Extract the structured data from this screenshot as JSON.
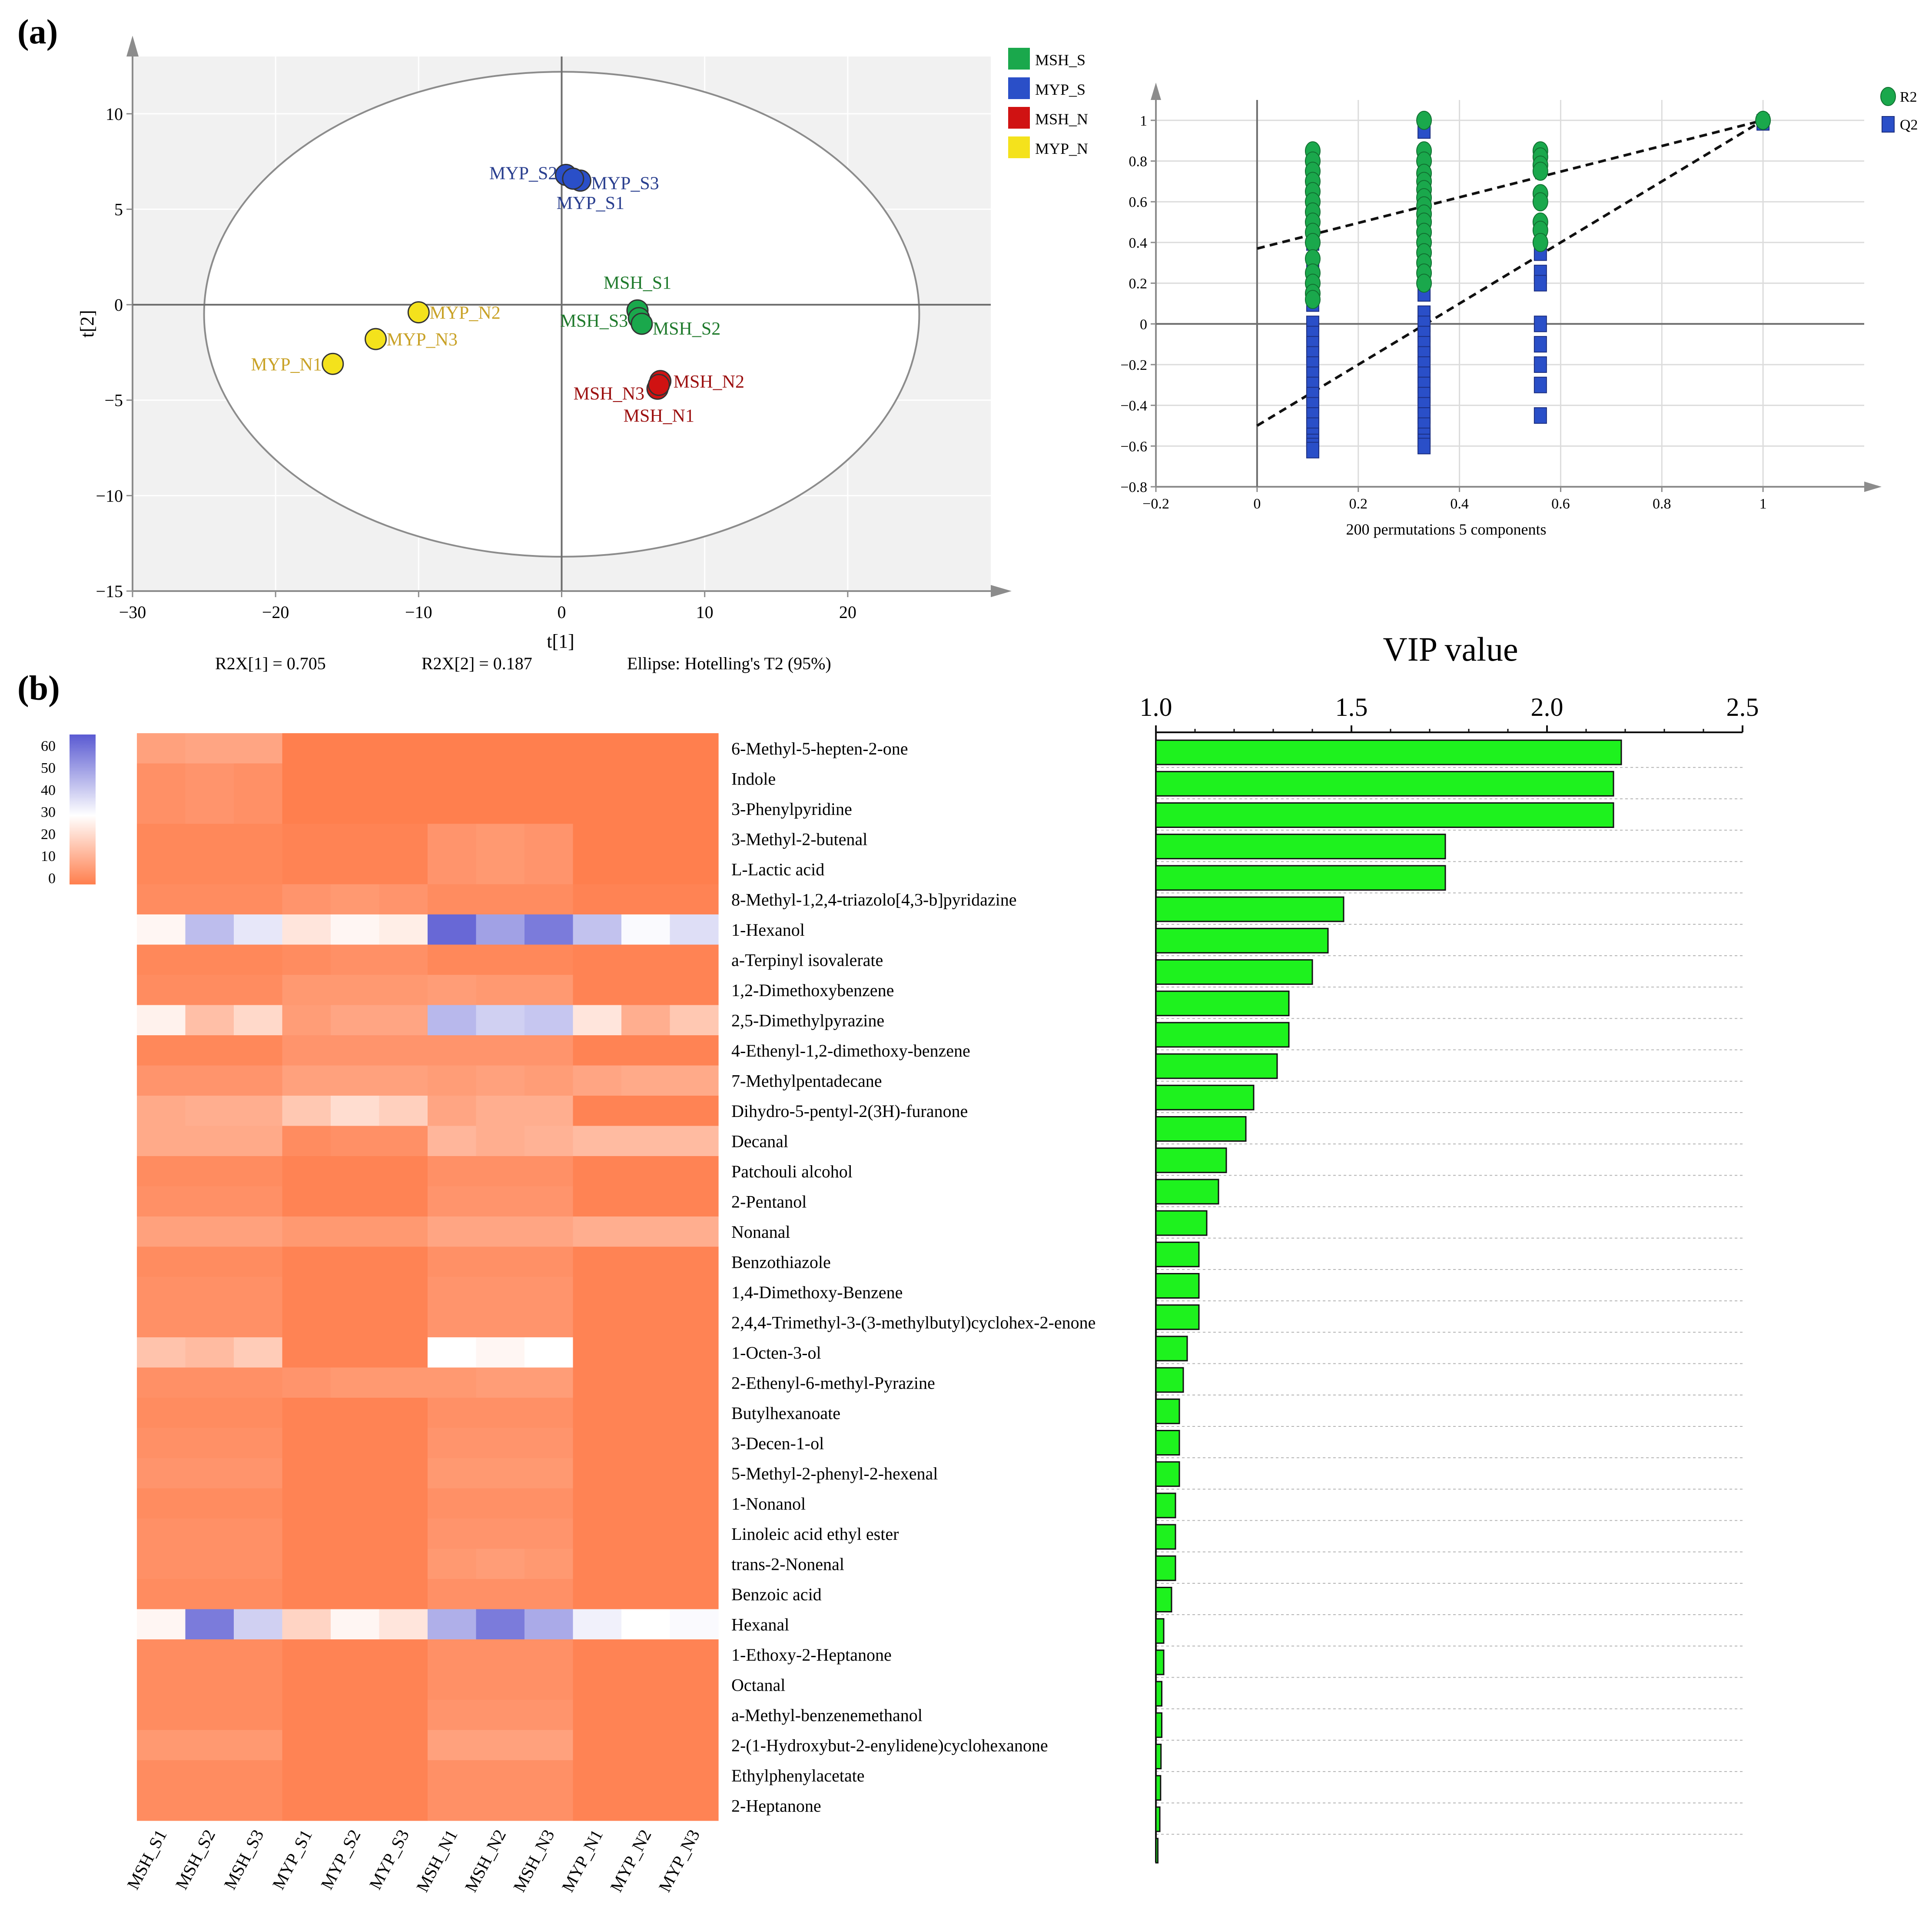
{
  "panel_labels": {
    "a": "(a)",
    "b": "(b)"
  },
  "colors": {
    "msh_s": "#1aa84c",
    "myp_s": "#2a4fc8",
    "msh_n": "#d01212",
    "myp_n": "#f4e21c",
    "lbl_msh_s": "#1f7a2c",
    "lbl_myp_s": "#2a3f8f",
    "lbl_msh_n": "#9c1010",
    "lbl_myp_n": "#c9a227",
    "r2": "#1aa84c",
    "q2": "#2a4fc8",
    "bar": "#1ef21e",
    "heat_low": "#ff7f4e",
    "heat_mid": "#ffffff",
    "heat_high": "#5a5ad2"
  },
  "chart_data": [
    {
      "id": "pca",
      "type": "scatter",
      "title": "",
      "xlabel": "t[1]",
      "ylabel": "t[2]",
      "xlim": [
        -30,
        30
      ],
      "ylim": [
        -15,
        13
      ],
      "xticks": [
        -30,
        -20,
        -10,
        0,
        10,
        20
      ],
      "yticks": [
        -15,
        -10,
        -5,
        0,
        5,
        10
      ],
      "xtick_labels": [
        "−30",
        "−20",
        "−10",
        "0",
        "10",
        "20"
      ],
      "ytick_labels": [
        "−15",
        "−10",
        "−5",
        "0",
        "5",
        "10"
      ],
      "ellipse": {
        "cx": 0,
        "cy": -0.5,
        "rx": 25,
        "ry": 12.7
      },
      "legend": [
        {
          "key": "msh_s",
          "label": "MSH_S"
        },
        {
          "key": "myp_s",
          "label": "MYP_S"
        },
        {
          "key": "msh_n",
          "label": "MSH_N"
        },
        {
          "key": "myp_n",
          "label": "MYP_N"
        }
      ],
      "points": [
        {
          "label": "MYP_S2",
          "group": "myp_s",
          "x": 0.3,
          "y": 6.8
        },
        {
          "label": "MYP_S3",
          "group": "myp_s",
          "x": 1.3,
          "y": 6.5
        },
        {
          "label": "MYP_S1",
          "group": "myp_s",
          "x": 0.8,
          "y": 6.6
        },
        {
          "label": "MSH_S1",
          "group": "msh_s",
          "x": 5.3,
          "y": -0.3
        },
        {
          "label": "MSH_S3",
          "group": "msh_s",
          "x": 5.4,
          "y": -0.7
        },
        {
          "label": "MSH_S2",
          "group": "msh_s",
          "x": 5.6,
          "y": -1.0
        },
        {
          "label": "MYP_N2",
          "group": "myp_n",
          "x": -10.0,
          "y": -0.4
        },
        {
          "label": "MYP_N3",
          "group": "myp_n",
          "x": -13.0,
          "y": -1.8
        },
        {
          "label": "MYP_N1",
          "group": "myp_n",
          "x": -16.0,
          "y": -3.1
        },
        {
          "label": "MSH_N3",
          "group": "msh_n",
          "x": 6.7,
          "y": -4.4
        },
        {
          "label": "MSH_N2",
          "group": "msh_n",
          "x": 6.9,
          "y": -4.0
        },
        {
          "label": "MSH_N1",
          "group": "msh_n",
          "x": 6.8,
          "y": -4.2
        }
      ],
      "footer": {
        "r2x1": "R2X[1] = 0.705",
        "r2x2": "R2X[2] = 0.187",
        "ellipse_note": "Ellipse: Hotelling's T2 (95%)"
      }
    },
    {
      "id": "permutation",
      "type": "scatter",
      "xlabel": "200 permutations 5 components",
      "xlim": [
        -0.2,
        1.2
      ],
      "ylim": [
        -0.8,
        1.1
      ],
      "xticks": [
        -0.2,
        0,
        0.2,
        0.4,
        0.6,
        0.8,
        1
      ],
      "yticks": [
        -0.8,
        -0.6,
        -0.4,
        -0.2,
        0,
        0.2,
        0.4,
        0.6,
        0.8,
        1
      ],
      "xtick_labels": [
        "−0.2",
        "0",
        "0.2",
        "0.4",
        "0.6",
        "0.8",
        "1"
      ],
      "ytick_labels": [
        "−0.8",
        "−0.6",
        "−0.4",
        "−0.2",
        "0",
        "0.2",
        "0.4",
        "0.6",
        "0.8",
        "1"
      ],
      "legend": [
        {
          "key": "r2",
          "label": "R2"
        },
        {
          "key": "q2",
          "label": "Q2"
        }
      ],
      "series": [
        {
          "name": "R2",
          "x": [
            0.11,
            0.11,
            0.11,
            0.11,
            0.11,
            0.11,
            0.11,
            0.11,
            0.11,
            0.11,
            0.11,
            0.11,
            0.11,
            0.11,
            0.11,
            0.33,
            0.33,
            0.33,
            0.33,
            0.33,
            0.33,
            0.33,
            0.33,
            0.33,
            0.33,
            0.33,
            0.33,
            0.33,
            0.33,
            0.33,
            0.33,
            0.56,
            0.56,
            0.56,
            0.56,
            0.56,
            0.56,
            0.56,
            0.56,
            0.56,
            1.0
          ],
          "y": [
            0.85,
            0.8,
            0.75,
            0.7,
            0.65,
            0.6,
            0.55,
            0.5,
            0.45,
            0.4,
            0.32,
            0.25,
            0.2,
            0.15,
            0.12,
            1.0,
            0.85,
            0.8,
            0.74,
            0.7,
            0.66,
            0.62,
            0.58,
            0.54,
            0.5,
            0.45,
            0.4,
            0.35,
            0.3,
            0.25,
            0.2,
            0.85,
            0.82,
            0.78,
            0.75,
            0.64,
            0.6,
            0.5,
            0.46,
            0.4,
            1.0
          ]
        },
        {
          "name": "Q2",
          "x": [
            0.11,
            0.11,
            0.11,
            0.11,
            0.11,
            0.11,
            0.11,
            0.11,
            0.11,
            0.11,
            0.11,
            0.11,
            0.11,
            0.11,
            0.11,
            0.11,
            0.11,
            0.11,
            0.11,
            0.11,
            0.33,
            0.33,
            0.33,
            0.33,
            0.33,
            0.33,
            0.33,
            0.33,
            0.33,
            0.33,
            0.33,
            0.33,
            0.33,
            0.33,
            0.33,
            0.33,
            0.33,
            0.33,
            0.33,
            0.33,
            0.56,
            0.56,
            0.56,
            0.56,
            0.56,
            0.56,
            0.56,
            0.56,
            1.0
          ],
          "y": [
            0.5,
            0.4,
            0.3,
            0.2,
            0.1,
            0.0,
            -0.05,
            -0.1,
            -0.15,
            -0.2,
            -0.25,
            -0.3,
            -0.35,
            -0.4,
            -0.45,
            -0.5,
            -0.55,
            -0.58,
            -0.6,
            -0.62,
            0.95,
            0.45,
            0.35,
            0.25,
            0.15,
            0.05,
            0.0,
            -0.05,
            -0.1,
            -0.15,
            -0.2,
            -0.25,
            -0.3,
            -0.35,
            -0.4,
            -0.45,
            -0.5,
            -0.55,
            -0.58,
            -0.6,
            0.35,
            0.25,
            0.2,
            0.0,
            -0.1,
            -0.2,
            -0.3,
            -0.45,
            0.99
          ]
        }
      ],
      "regressions": [
        {
          "name": "R2",
          "intercept": 0.37,
          "at_one": 1.0
        },
        {
          "name": "Q2",
          "intercept": -0.5,
          "at_one": 1.0
        }
      ]
    },
    {
      "id": "heatmap",
      "type": "heatmap",
      "columns": [
        "MSH_S1",
        "MSH_S2",
        "MSH_S3",
        "MYP_S1",
        "MYP_S2",
        "MYP_S3",
        "MSH_N1",
        "MSH_N2",
        "MSH_N3",
        "MYP_N1",
        "MYP_N2",
        "MYP_N3"
      ],
      "rows": [
        "6-Methyl-5-hepten-2-one",
        "Indole",
        "3-Phenylpyridine",
        "3-Methyl-2-butenal",
        "L-Lactic acid",
        "8-Methyl-1,2,4-triazolo[4,3-b]pyridazine",
        "1-Hexanol",
        "a-Terpinyl isovalerate",
        "1,2-Dimethoxybenzene",
        "2,5-Dimethylpyrazine",
        "4-Ethenyl-1,2-dimethoxy-benzene",
        "7-Methylpentadecane",
        "Dihydro-5-pentyl-2(3H)-furanone",
        "Decanal",
        "Patchouli alcohol",
        "2-Pentanol",
        "Nonanal",
        "Benzothiazole",
        "1,4-Dimethoxy-Benzene",
        "2,4,4-Trimethyl-3-(3-methylbutyl)cyclohex-2-enone",
        "1-Octen-3-ol",
        "2-Ethenyl-6-methyl-Pyrazine",
        "Butylhexanoate",
        "3-Decen-1-ol",
        "5-Methyl-2-phenyl-2-hexenal",
        "1-Nonanol",
        "Linoleic acid ethyl ester",
        "trans-2-Nonenal",
        "Benzoic acid",
        "Hexanal",
        "1-Ethoxy-2-Heptanone",
        "Octanal",
        "a-Methyl-benzenemethanol",
        "2-(1-Hydroxybut-2-enylidene)cyclohexanone",
        "Ethylphenylacetate",
        "2-Heptanone"
      ],
      "values": [
        [
          8,
          9,
          9,
          0,
          0,
          0,
          0,
          0,
          0,
          0,
          0,
          0
        ],
        [
          4,
          5,
          4,
          0,
          0,
          0,
          0,
          0,
          0,
          0,
          0,
          0
        ],
        [
          4,
          5,
          4,
          0,
          0,
          0,
          0,
          0,
          0,
          0,
          0,
          0
        ],
        [
          2,
          2,
          2,
          1,
          1,
          1,
          5,
          6,
          5,
          0,
          0,
          0
        ],
        [
          2,
          2,
          2,
          1,
          1,
          1,
          5,
          6,
          5,
          0,
          0,
          0
        ],
        [
          3,
          3,
          3,
          5,
          6,
          5,
          3,
          3,
          3,
          1,
          1,
          1
        ],
        [
          28,
          44,
          35,
          24,
          28,
          26,
          62,
          50,
          58,
          43,
          31,
          37
        ],
        [
          2,
          2,
          2,
          3,
          4,
          4,
          2,
          2,
          2,
          1,
          1,
          1
        ],
        [
          3,
          3,
          3,
          6,
          6,
          6,
          7,
          6,
          6,
          1,
          1,
          1
        ],
        [
          27,
          15,
          21,
          7,
          9,
          9,
          45,
          40,
          42,
          24,
          11,
          17
        ],
        [
          2,
          2,
          2,
          5,
          5,
          5,
          5,
          5,
          5,
          1,
          1,
          1
        ],
        [
          5,
          5,
          5,
          8,
          8,
          8,
          7,
          8,
          7,
          9,
          10,
          10
        ],
        [
          10,
          11,
          11,
          17,
          22,
          19,
          9,
          11,
          11,
          1,
          1,
          1
        ],
        [
          10,
          10,
          10,
          3,
          4,
          4,
          13,
          11,
          12,
          14,
          14,
          14
        ],
        [
          3,
          3,
          3,
          1,
          1,
          1,
          4,
          4,
          4,
          1,
          1,
          1
        ],
        [
          4,
          4,
          4,
          1,
          1,
          1,
          5,
          5,
          5,
          1,
          1,
          1
        ],
        [
          8,
          8,
          8,
          6,
          6,
          6,
          9,
          9,
          9,
          11,
          11,
          11
        ],
        [
          3,
          3,
          3,
          1,
          1,
          1,
          4,
          4,
          4,
          1,
          1,
          1
        ],
        [
          4,
          4,
          4,
          1,
          1,
          1,
          5,
          5,
          5,
          1,
          1,
          1
        ],
        [
          4,
          4,
          4,
          1,
          1,
          1,
          5,
          5,
          5,
          1,
          1,
          1
        ],
        [
          16,
          14,
          18,
          1,
          1,
          1,
          30,
          28,
          30,
          1,
          1,
          1
        ],
        [
          4,
          4,
          4,
          5,
          6,
          6,
          6,
          7,
          7,
          1,
          1,
          1
        ],
        [
          3,
          3,
          3,
          1,
          1,
          1,
          4,
          4,
          4,
          1,
          1,
          1
        ],
        [
          4,
          4,
          4,
          1,
          1,
          1,
          5,
          5,
          5,
          1,
          1,
          1
        ],
        [
          5,
          5,
          5,
          1,
          1,
          1,
          6,
          6,
          6,
          1,
          1,
          1
        ],
        [
          3,
          3,
          3,
          1,
          1,
          1,
          4,
          4,
          4,
          1,
          1,
          1
        ],
        [
          4,
          4,
          4,
          1,
          1,
          1,
          5,
          5,
          5,
          1,
          1,
          1
        ],
        [
          4,
          4,
          4,
          1,
          1,
          1,
          6,
          7,
          6,
          1,
          1,
          1
        ],
        [
          3,
          3,
          3,
          1,
          1,
          1,
          4,
          4,
          4,
          1,
          1,
          1
        ],
        [
          28,
          58,
          40,
          20,
          28,
          24,
          47,
          58,
          48,
          33,
          30,
          31
        ],
        [
          3,
          3,
          3,
          1,
          1,
          1,
          4,
          4,
          4,
          1,
          1,
          1
        ],
        [
          3,
          3,
          3,
          1,
          1,
          1,
          4,
          4,
          4,
          1,
          1,
          1
        ],
        [
          3,
          3,
          3,
          1,
          1,
          1,
          5,
          5,
          5,
          1,
          1,
          1
        ],
        [
          6,
          6,
          6,
          1,
          1,
          1,
          8,
          8,
          8,
          1,
          1,
          1
        ],
        [
          3,
          3,
          3,
          1,
          1,
          1,
          4,
          4,
          4,
          1,
          1,
          1
        ],
        [
          3,
          3,
          3,
          1,
          1,
          1,
          4,
          4,
          4,
          1,
          1,
          1
        ]
      ],
      "scale": {
        "min": 0,
        "max": 65,
        "mid": 30,
        "ticks": [
          60,
          50,
          40,
          30,
          20,
          10,
          0
        ]
      }
    },
    {
      "id": "vip",
      "type": "bar",
      "title": "VIP value",
      "xlim": [
        1.0,
        2.5
      ],
      "xticks": [
        1.0,
        1.5,
        2.0,
        2.5
      ],
      "xtick_labels": [
        "1.0",
        "1.5",
        "2.0",
        "2.5"
      ],
      "values": [
        2.19,
        2.17,
        2.17,
        1.74,
        1.74,
        1.48,
        1.44,
        1.4,
        1.34,
        1.34,
        1.31,
        1.25,
        1.23,
        1.18,
        1.16,
        1.13,
        1.11,
        1.11,
        1.11,
        1.08,
        1.07,
        1.06,
        1.06,
        1.06,
        1.05,
        1.05,
        1.05,
        1.04,
        1.02,
        1.02,
        1.015,
        1.015,
        1.013,
        1.012,
        1.01,
        1.005
      ]
    }
  ]
}
